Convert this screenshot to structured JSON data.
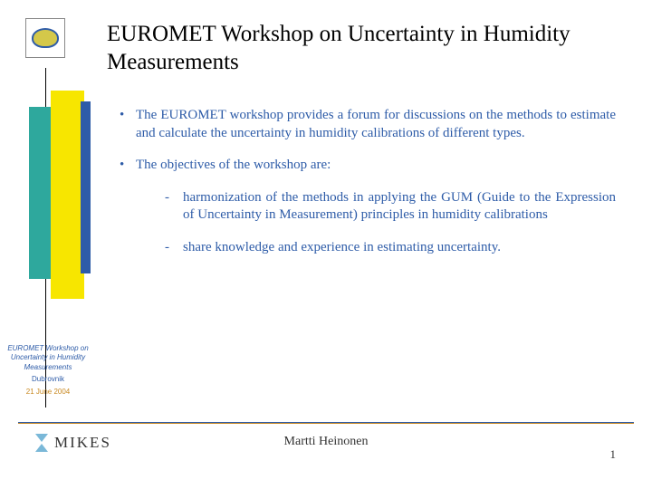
{
  "colors": {
    "blue_text": "#2e5ca8",
    "teal": "#2ea89d",
    "yellow": "#f7e600",
    "blue_bar": "#2e5ca8",
    "orange": "#c88820",
    "background": "#ffffff"
  },
  "title": "EUROMET Workshop on Uncertainty in Humidity Measurements",
  "body": {
    "p1": "The EUROMET workshop provides a forum for discussions on the methods to estimate and calculate the uncertainty in humidity calibrations of different types.",
    "p2": "The objectives of the workshop are:",
    "sub1": "harmonization of the methods in applying the GUM (Guide to the Expression of Uncertainty in Measurement) principles in humidity calibrations",
    "sub2": "share knowledge and experience in estimating uncertainty."
  },
  "sidebar": {
    "title": "EUROMET Workshop on Uncertainty in Humidity Measurements",
    "location": "Dubrovnik",
    "date": "21 June 2004"
  },
  "footer": {
    "org": "MIKES",
    "author": "Martti Heinonen",
    "page": "1"
  }
}
